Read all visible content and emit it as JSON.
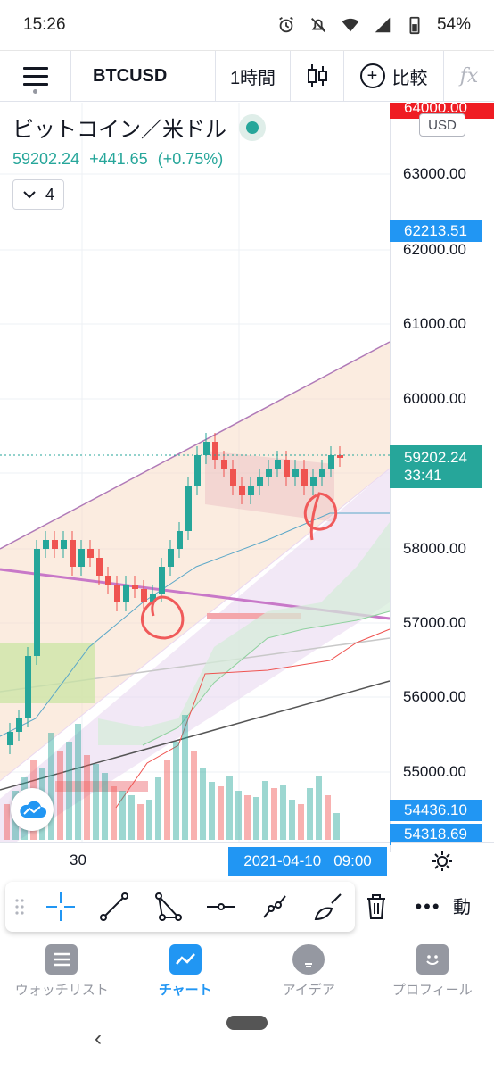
{
  "status_bar": {
    "time": "15:26",
    "battery": "54%"
  },
  "toolbar": {
    "symbol": "BTCUSD",
    "interval": "1時間",
    "compare_label": "比較",
    "indicators_icon": "fx"
  },
  "legend": {
    "title": "ビットコイン／米ドル",
    "last": "59202.24",
    "change": "+441.65",
    "change_pct": "(+0.75%)",
    "indicator_count": "4"
  },
  "price_scale": {
    "currency": "USD",
    "labels": [
      "63000.00",
      "62000.00",
      "61000.00",
      "60000.00",
      "58000.00",
      "57000.00",
      "56000.00",
      "55000.00"
    ],
    "tags": {
      "top_red": "64000.00",
      "blue": "62213.51",
      "current": "59202.24",
      "countdown": "33:41",
      "low_1": "54436.10",
      "low_2": "54318.69"
    }
  },
  "time_scale": {
    "label": "30",
    "cursor_date": "2021-04-10",
    "cursor_time": "09:00"
  },
  "drawing_toolbar": {
    "cut_label": "動",
    "more": "•••"
  },
  "bottom_nav": {
    "items": [
      {
        "label": "ウォッチリスト",
        "icon": "list-icon"
      },
      {
        "label": "チャート",
        "icon": "chart-icon"
      },
      {
        "label": "アイデア",
        "icon": "bulb-icon"
      },
      {
        "label": "プロフィール",
        "icon": "smile-icon"
      }
    ]
  },
  "colors": {
    "up": "#26a69a",
    "down": "#ef5350",
    "accent": "#2196f3",
    "annotation": "#f05a5a"
  }
}
